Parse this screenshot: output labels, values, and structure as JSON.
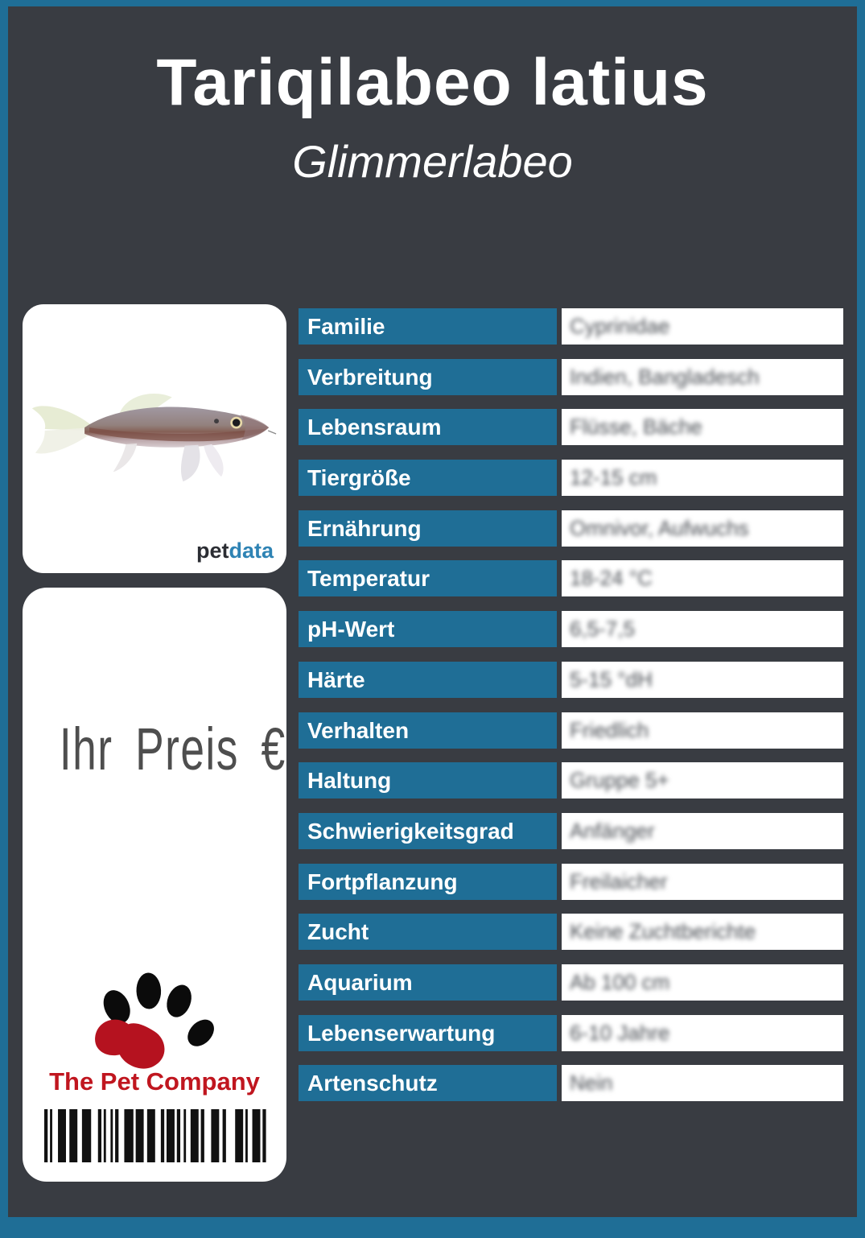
{
  "header": {
    "title": "Tariqilabeo latius",
    "subtitle": "Glimmerlabeo"
  },
  "fish_card": {
    "image": "tariqilabeo-latius-fish-photo",
    "brand_pet": "pet",
    "brand_data": "data"
  },
  "price_card": {
    "price_label": "Ihr Preis €",
    "company": "The Pet Company",
    "barcode_pattern": [
      [
        3,
        2
      ],
      [
        2,
        5
      ],
      [
        7,
        3
      ],
      [
        7,
        4
      ],
      [
        8,
        6
      ],
      [
        3,
        2
      ],
      [
        2,
        4
      ],
      [
        2,
        2
      ],
      [
        3,
        5
      ],
      [
        8,
        2
      ],
      [
        7,
        3
      ],
      [
        7,
        5
      ],
      [
        3,
        2
      ],
      [
        7,
        2
      ],
      [
        3,
        3
      ],
      [
        2,
        4
      ],
      [
        7,
        2
      ],
      [
        3,
        6
      ],
      [
        7,
        3
      ],
      [
        3,
        8
      ],
      [
        7,
        2
      ],
      [
        2,
        4
      ],
      [
        7,
        2
      ],
      [
        3,
        1
      ]
    ]
  },
  "table": {
    "rows": [
      {
        "label": "Familie",
        "value": "Cyprinidae"
      },
      {
        "label": "Verbreitung",
        "value": "Indien, Bangladesch"
      },
      {
        "label": "Lebensraum",
        "value": "Flüsse, Bäche"
      },
      {
        "label": "Tiergröße",
        "value": "12-15 cm"
      },
      {
        "label": "Ernährung",
        "value": "Omnivor, Aufwuchs"
      },
      {
        "label": "Temperatur",
        "value": "18-24 °C"
      },
      {
        "label": "pH-Wert",
        "value": "6,5-7,5"
      },
      {
        "label": "Härte",
        "value": "5-15 °dH"
      },
      {
        "label": "Verhalten",
        "value": "Friedlich"
      },
      {
        "label": "Haltung",
        "value": "Gruppe 5+"
      },
      {
        "label": "Schwierigkeitsgrad",
        "value": "Anfänger"
      },
      {
        "label": "Fortpflanzung",
        "value": "Freilaicher"
      },
      {
        "label": "Zucht",
        "value": "Keine Zuchtberichte"
      },
      {
        "label": "Aquarium",
        "value": "Ab 100 cm"
      },
      {
        "label": "Lebenserwartung",
        "value": "6-10 Jahre"
      },
      {
        "label": "Artenschutz",
        "value": "Nein"
      }
    ]
  },
  "colors": {
    "accent_teal": "#1f6e96",
    "background_dark": "#393c42",
    "brand_red": "#c0161f",
    "brand_blue": "#2e83b4",
    "value_text": "#4a4e54"
  }
}
